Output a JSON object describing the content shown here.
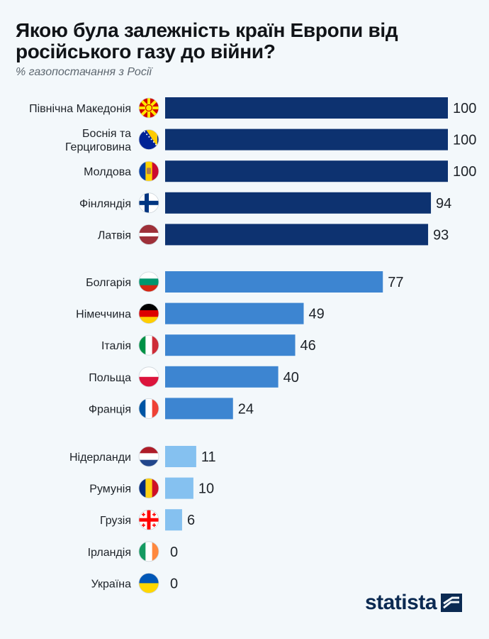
{
  "chart_data": {
    "type": "bar",
    "orientation": "horizontal",
    "title": "Якою була залежність країн Европи від російського газу до війни?",
    "subtitle": "% газопостачання з Росії",
    "xlim": [
      0,
      100
    ],
    "grid": false,
    "legend": "none",
    "colors": {
      "high": "#0d3270",
      "medium": "#3d85d1",
      "low": "#85c1f0"
    },
    "groups": [
      {
        "color_key": "high",
        "items": [
          {
            "category": "Північна Македонія",
            "value": 100,
            "flag": "north-macedonia-flag"
          },
          {
            "category": "Боснія та\nГерциговина",
            "value": 100,
            "flag": "bosnia-flag"
          },
          {
            "category": "Молдова",
            "value": 100,
            "flag": "moldova-flag"
          },
          {
            "category": "Фінляндія",
            "value": 94,
            "flag": "finland-flag"
          },
          {
            "category": "Латвія",
            "value": 93,
            "flag": "latvia-flag"
          }
        ]
      },
      {
        "color_key": "medium",
        "items": [
          {
            "category": "Болгарія",
            "value": 77,
            "flag": "bulgaria-flag"
          },
          {
            "category": "Німеччина",
            "value": 49,
            "flag": "germany-flag"
          },
          {
            "category": "Італія",
            "value": 46,
            "flag": "italy-flag"
          },
          {
            "category": "Польща",
            "value": 40,
            "flag": "poland-flag"
          },
          {
            "category": "Франція",
            "value": 24,
            "flag": "france-flag"
          }
        ]
      },
      {
        "color_key": "low",
        "items": [
          {
            "category": "Нідерланди",
            "value": 11,
            "flag": "netherlands-flag"
          },
          {
            "category": "Румунія",
            "value": 10,
            "flag": "romania-flag"
          },
          {
            "category": "Грузія",
            "value": 6,
            "flag": "georgia-flag"
          },
          {
            "category": "Ірландія",
            "value": 0,
            "flag": "ireland-flag"
          },
          {
            "category": "Україна",
            "value": 0,
            "flag": "ukraine-flag"
          }
        ]
      }
    ]
  },
  "logo": {
    "text": "statista",
    "icon": "statista-logo-icon"
  }
}
